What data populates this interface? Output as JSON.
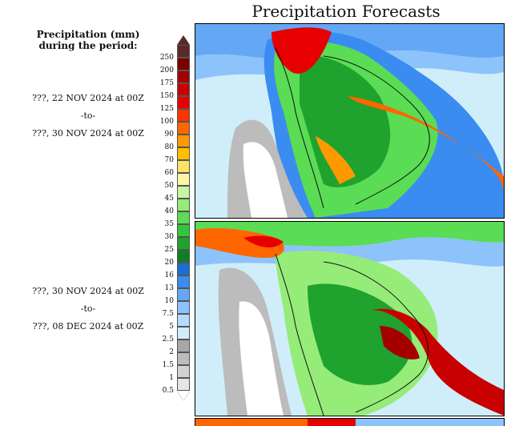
{
  "title": "Precipitation Forecasts",
  "legend": {
    "heading_line1": "Precipitation (mm)",
    "heading_line2": "during the period:",
    "levels": [
      "250",
      "200",
      "175",
      "150",
      "125",
      "100",
      "90",
      "80",
      "70",
      "60",
      "50",
      "45",
      "40",
      "35",
      "30",
      "25",
      "20",
      "16",
      "13",
      "10",
      "7.5",
      "5",
      "2.5",
      "2",
      "1.5",
      "1",
      "0.5"
    ],
    "colors": [
      "#5a2a2a",
      "#7a0000",
      "#a50000",
      "#c80000",
      "#e60000",
      "#ff3300",
      "#ff6600",
      "#ff9900",
      "#ffbf00",
      "#ffe066",
      "#fff4a6",
      "#c8f5a0",
      "#96ec78",
      "#5adc55",
      "#2fc83a",
      "#1fa22e",
      "#0f7f25",
      "#1a6fd6",
      "#3a8cf0",
      "#64a8f5",
      "#8cc3fa",
      "#b4dcff",
      "#cfeefa",
      "#a8a8a8",
      "#bcbcbc",
      "#d2d2d2",
      "#e6e6e6"
    ]
  },
  "periods": [
    {
      "from": "???, 22 NOV 2024 at 00Z",
      "to": "-to-",
      "until": "???, 30 NOV 2024 at 00Z"
    },
    {
      "from": "???, 30 NOV 2024 at 00Z",
      "to": "-to-",
      "until": "???, 08 DEC 2024 at 00Z"
    }
  ]
}
